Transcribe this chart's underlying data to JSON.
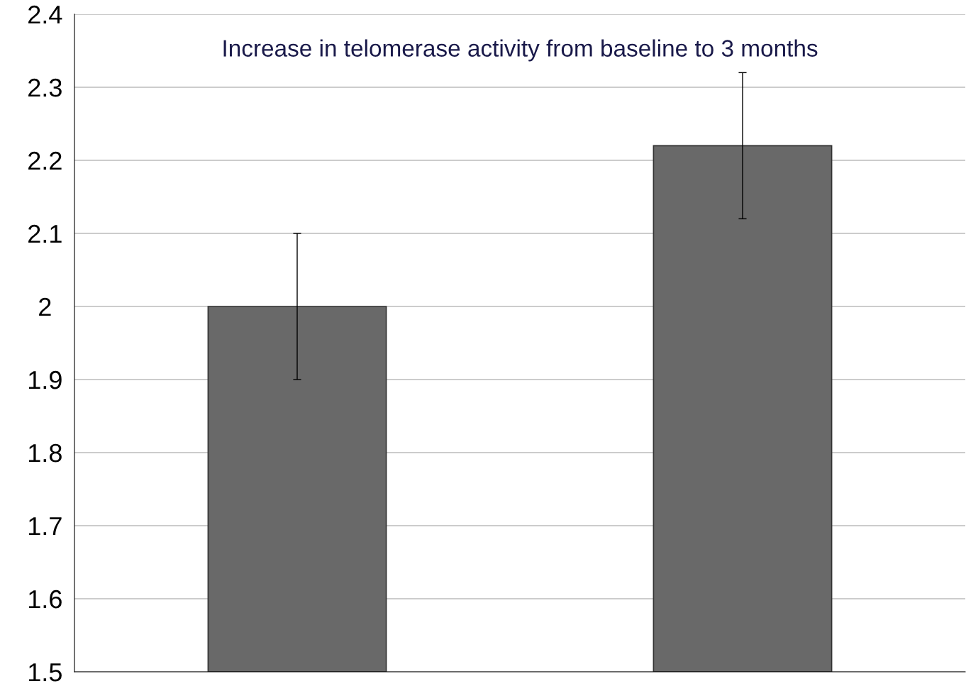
{
  "chart_data": {
    "type": "bar",
    "title": "Increase in telomerase activity from baseline to 3 months",
    "categories": [
      null,
      null
    ],
    "values": [
      2.0,
      2.22
    ],
    "errors": [
      0.1,
      0.1
    ],
    "color": "#696969",
    "ylim": [
      1.5,
      2.4
    ],
    "yticks": [
      1.5,
      1.6,
      1.7,
      1.8,
      1.9,
      2,
      2.1,
      2.2,
      2.3,
      2.4
    ],
    "grid": "y"
  }
}
